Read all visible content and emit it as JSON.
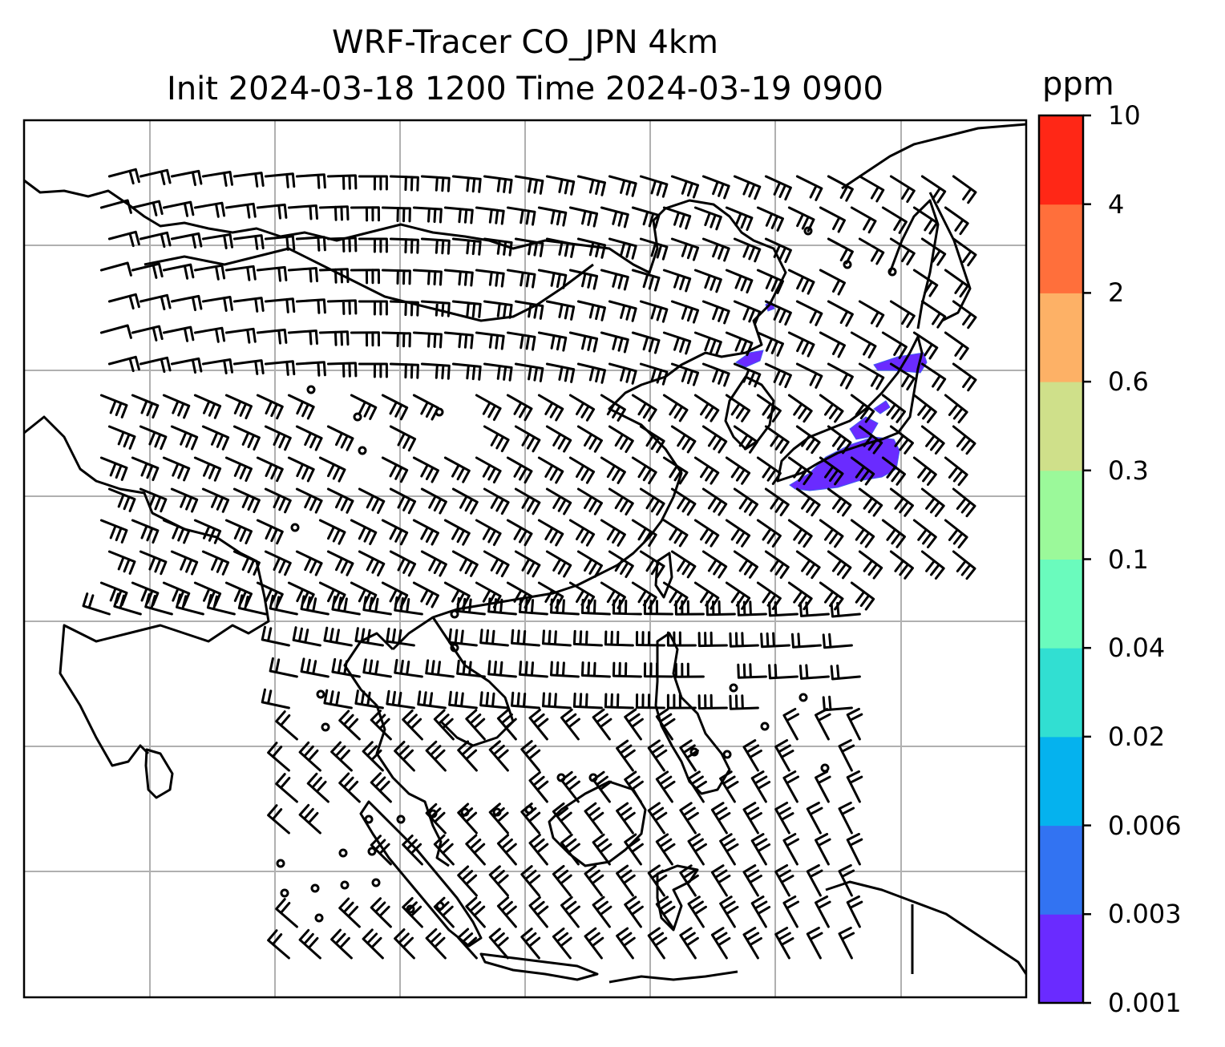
{
  "title": {
    "line1": "WRF-Tracer CO_JPN 4km",
    "line2": "Init 2024-03-18 1200 Time 2024-03-19 0900"
  },
  "colorbar": {
    "unit": "ppm",
    "levels": [
      "0.001",
      "0.003",
      "0.006",
      "0.02",
      "0.04",
      "0.1",
      "0.3",
      "0.6",
      "2",
      "4",
      "10"
    ],
    "colors": [
      "#6a2bff",
      "#3273f2",
      "#05b2ee",
      "#31dfd2",
      "#6afbbd",
      "#9bf99a",
      "#cfe08a",
      "#fdb166",
      "#ff6f3b",
      "#ff2716"
    ]
  },
  "map": {
    "gridline_color": "#b0b0b0",
    "coastline_color": "#000000",
    "plume_color": "#6a2bff",
    "station_marker": "circle (calm wind)",
    "wind_glyph": "wind-barb"
  }
}
